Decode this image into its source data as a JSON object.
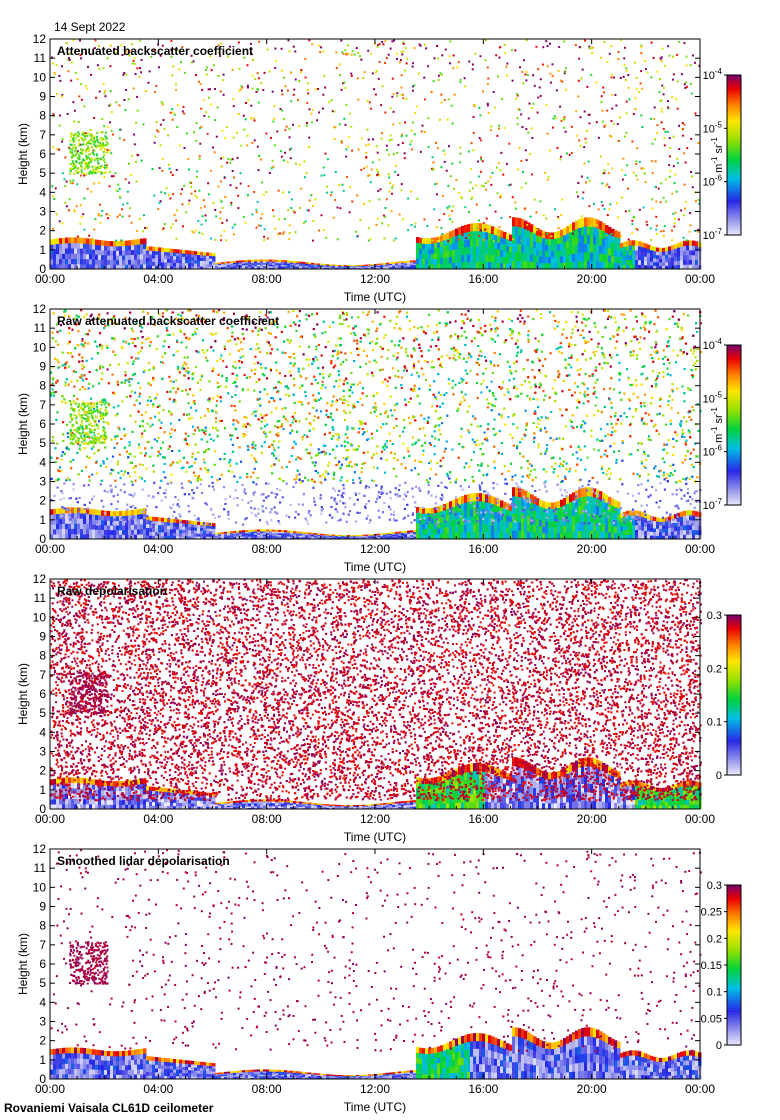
{
  "page": {
    "date": "14 Sept 2022",
    "footer": "Rovaniemi Vaisala CL61D ceilometer"
  },
  "chart_data": [
    {
      "type": "heatmap",
      "title": "Attenuated backscatter coefficient",
      "xlabel": "Time (UTC)",
      "ylabel": "Height (km)",
      "x_ticks": [
        "00:00",
        "04:00",
        "08:00",
        "12:00",
        "16:00",
        "20:00",
        "00:00"
      ],
      "y_ticks": [
        0,
        1,
        2,
        3,
        4,
        5,
        6,
        7,
        8,
        9,
        10,
        11,
        12
      ],
      "xlim_hours": [
        0,
        24
      ],
      "ylim_km": [
        0,
        12
      ],
      "colorbar": {
        "scale": "log",
        "range": [
          1e-07,
          0.0001
        ],
        "ticks": [
          {
            "base": "10",
            "exp": "-4"
          },
          {
            "base": "10",
            "exp": "-5"
          },
          {
            "base": "10",
            "exp": "-6"
          },
          {
            "base": "10",
            "exp": "-7"
          }
        ],
        "unit": {
          "a": "m",
          "a_exp": "-1",
          "b": " sr",
          "b_exp": "-1"
        }
      }
    },
    {
      "type": "heatmap",
      "title": "Raw attenuated backscatter coefficient",
      "xlabel": "Time (UTC)",
      "ylabel": "Height (km)",
      "x_ticks": [
        "00:00",
        "04:00",
        "08:00",
        "12:00",
        "16:00",
        "20:00",
        "00:00"
      ],
      "y_ticks": [
        0,
        1,
        2,
        3,
        4,
        5,
        6,
        7,
        8,
        9,
        10,
        11,
        12
      ],
      "xlim_hours": [
        0,
        24
      ],
      "ylim_km": [
        0,
        12
      ],
      "colorbar": {
        "scale": "log",
        "range": [
          1e-07,
          0.0001
        ],
        "ticks": [
          {
            "base": "10",
            "exp": "-4"
          },
          {
            "base": "10",
            "exp": "-5"
          },
          {
            "base": "10",
            "exp": "-6"
          },
          {
            "base": "10",
            "exp": "-7"
          }
        ],
        "unit": {
          "a": "m",
          "a_exp": "-1",
          "b": " sr",
          "b_exp": "-1"
        }
      }
    },
    {
      "type": "heatmap",
      "title": "Raw depolarisation",
      "xlabel": "Time (UTC)",
      "ylabel": "Height (km)",
      "x_ticks": [
        "00:00",
        "04:00",
        "08:00",
        "12:00",
        "16:00",
        "20:00",
        "00:00"
      ],
      "y_ticks": [
        0,
        1,
        2,
        3,
        4,
        5,
        6,
        7,
        8,
        9,
        10,
        11,
        12
      ],
      "xlim_hours": [
        0,
        24
      ],
      "ylim_km": [
        0,
        12
      ],
      "colorbar": {
        "scale": "linear",
        "range": [
          0,
          0.3
        ],
        "ticks": [
          "0.3",
          "0.2",
          "0.1",
          "0"
        ]
      }
    },
    {
      "type": "heatmap",
      "title": "Smoothed lidar depolarisation",
      "xlabel": "Time (UTC)",
      "ylabel": "Height (km)",
      "x_ticks": [
        "00:00",
        "04:00",
        "08:00",
        "12:00",
        "16:00",
        "20:00",
        "00:00"
      ],
      "y_ticks": [
        0,
        1,
        2,
        3,
        4,
        5,
        6,
        7,
        8,
        9,
        10,
        11,
        12
      ],
      "xlim_hours": [
        0,
        24
      ],
      "ylim_km": [
        0,
        12
      ],
      "colorbar": {
        "scale": "linear",
        "range": [
          0,
          0.3
        ],
        "ticks": [
          "0.3",
          "0.25",
          "0.2",
          "0.15",
          "0.1",
          "0.05",
          "0"
        ]
      }
    }
  ]
}
